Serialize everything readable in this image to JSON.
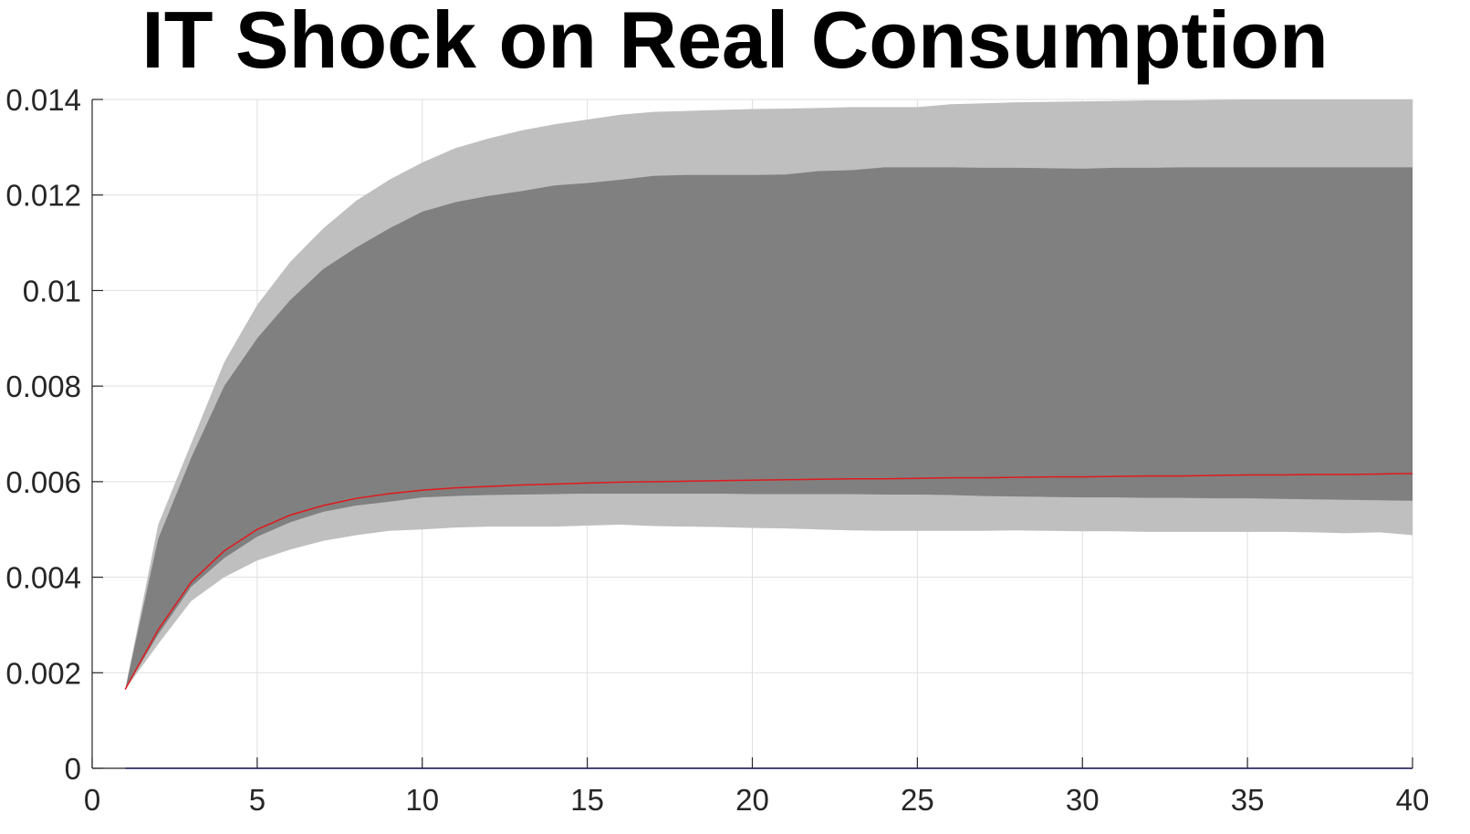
{
  "chart_data": {
    "type": "area",
    "title": "IT Shock on Real Consumption",
    "xlabel": "",
    "ylabel": "",
    "xlim": [
      0,
      40
    ],
    "ylim": [
      0,
      0.014
    ],
    "grid": true,
    "x_ticks": [
      0,
      5,
      10,
      15,
      20,
      25,
      30,
      35,
      40
    ],
    "x_tick_labels": [
      "0",
      "5",
      "10",
      "15",
      "20",
      "25",
      "30",
      "35",
      "40"
    ],
    "y_ticks": [
      0,
      0.002,
      0.004,
      0.006,
      0.008,
      0.01,
      0.012,
      0.014
    ],
    "y_tick_labels": [
      "0",
      "0.002",
      "0.004",
      "0.006",
      "0.008",
      "0.01",
      "0.012",
      "0.014"
    ],
    "x": [
      1,
      2,
      3,
      4,
      5,
      6,
      7,
      8,
      9,
      10,
      11,
      12,
      13,
      14,
      15,
      16,
      17,
      18,
      19,
      20,
      21,
      22,
      23,
      24,
      25,
      26,
      27,
      28,
      29,
      30,
      31,
      32,
      33,
      34,
      35,
      36,
      37,
      38,
      39,
      40
    ],
    "series": [
      {
        "role": "outer_band_upper",
        "color": "#bfbfbf",
        "values": [
          0.00165,
          0.0051,
          0.0068,
          0.0085,
          0.0097,
          0.0106,
          0.0113,
          0.01188,
          0.01232,
          0.01268,
          0.01298,
          0.01318,
          0.01335,
          0.01348,
          0.01358,
          0.01368,
          0.01374,
          0.01376,
          0.01378,
          0.0138,
          0.01381,
          0.01382,
          0.01384,
          0.01384,
          0.01384,
          0.0139,
          0.01392,
          0.01394,
          0.01395,
          0.01396,
          0.01397,
          0.01398,
          0.01398,
          0.01399,
          0.014,
          0.014,
          0.014,
          0.014,
          0.014,
          0.014
        ]
      },
      {
        "role": "inner_band_upper",
        "color": "#808080",
        "values": [
          0.00165,
          0.0048,
          0.0065,
          0.008,
          0.009,
          0.0098,
          0.01045,
          0.0109,
          0.0113,
          0.01165,
          0.01185,
          0.01198,
          0.01208,
          0.0122,
          0.01225,
          0.01232,
          0.0124,
          0.01242,
          0.01242,
          0.01242,
          0.01243,
          0.0125,
          0.01252,
          0.01258,
          0.01258,
          0.01258,
          0.01257,
          0.01257,
          0.01256,
          0.01255,
          0.01257,
          0.01257,
          0.01258,
          0.01258,
          0.01258,
          0.01258,
          0.01258,
          0.01258,
          0.01258,
          0.01258
        ]
      },
      {
        "role": "inner_band_lower",
        "color": "#808080",
        "values": [
          0.00165,
          0.0028,
          0.0038,
          0.0044,
          0.00485,
          0.00515,
          0.00537,
          0.0055,
          0.00558,
          0.00567,
          0.0057,
          0.00572,
          0.00573,
          0.00574,
          0.00575,
          0.00575,
          0.00575,
          0.00575,
          0.00575,
          0.00574,
          0.00574,
          0.00574,
          0.00574,
          0.00573,
          0.00573,
          0.00572,
          0.0057,
          0.00569,
          0.00568,
          0.00567,
          0.00567,
          0.00566,
          0.00566,
          0.00565,
          0.00565,
          0.00564,
          0.00563,
          0.00562,
          0.00561,
          0.0056
        ]
      },
      {
        "role": "outer_band_lower",
        "color": "#bfbfbf",
        "values": [
          0.00165,
          0.0026,
          0.0035,
          0.004,
          0.00435,
          0.00458,
          0.00476,
          0.00488,
          0.00497,
          0.005,
          0.00504,
          0.00506,
          0.00506,
          0.00506,
          0.00508,
          0.0051,
          0.00507,
          0.00506,
          0.00505,
          0.00503,
          0.00502,
          0.005,
          0.00498,
          0.00497,
          0.00497,
          0.00497,
          0.00497,
          0.00498,
          0.00497,
          0.00496,
          0.00496,
          0.00495,
          0.00495,
          0.00495,
          0.00495,
          0.00495,
          0.00494,
          0.00492,
          0.00494,
          0.00488
        ]
      },
      {
        "role": "median_line",
        "color": "#e0191c",
        "values": [
          0.00165,
          0.0029,
          0.0039,
          0.00455,
          0.005,
          0.0053,
          0.0055,
          0.00565,
          0.00575,
          0.00582,
          0.00587,
          0.0059,
          0.00593,
          0.00595,
          0.00597,
          0.00599,
          0.006,
          0.00601,
          0.00602,
          0.00603,
          0.00604,
          0.00605,
          0.00606,
          0.00606,
          0.00607,
          0.00608,
          0.00608,
          0.00609,
          0.0061,
          0.0061,
          0.00611,
          0.00612,
          0.00612,
          0.00613,
          0.00614,
          0.00614,
          0.00615,
          0.00615,
          0.00616,
          0.00617
        ]
      },
      {
        "role": "zero_line",
        "color": "#0000ff",
        "values": [
          0,
          0,
          0,
          0,
          0,
          0,
          0,
          0,
          0,
          0,
          0,
          0,
          0,
          0,
          0,
          0,
          0,
          0,
          0,
          0,
          0,
          0,
          0,
          0,
          0,
          0,
          0,
          0,
          0,
          0,
          0,
          0,
          0,
          0,
          0,
          0,
          0,
          0,
          0,
          0
        ]
      }
    ]
  }
}
